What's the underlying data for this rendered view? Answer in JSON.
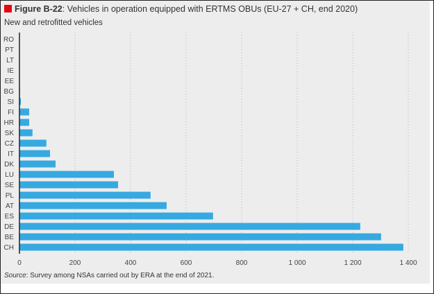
{
  "figure": {
    "label": "Figure B-22",
    "title_rest": ": Vehicles in operation equipped with ERTMS OBUs (EU-27 + CH, end 2020)",
    "subtitle": "New and retrofitted vehicles",
    "source_label": "Source",
    "source_rest": ": Survey among NSAs carried out by ERA at the end of 2021.",
    "accent_color": "#e30613",
    "bar_color": "#36a9e1"
  },
  "chart_data": {
    "type": "bar",
    "orientation": "horizontal",
    "title": "Figure B-22: Vehicles in operation equipped with ERTMS OBUs (EU-27 + CH, end 2020)",
    "subtitle": "New and retrofitted vehicles",
    "categories": [
      "RO",
      "PT",
      "LT",
      "IE",
      "EE",
      "BG",
      "SI",
      "FI",
      "HR",
      "SK",
      "CZ",
      "IT",
      "DK",
      "LU",
      "SE",
      "PL",
      "AT",
      "ES",
      "DE",
      "BE",
      "CH"
    ],
    "values": [
      0,
      0,
      0,
      0,
      0,
      2,
      5,
      35,
      35,
      47,
      97,
      110,
      130,
      340,
      355,
      472,
      530,
      697,
      1227,
      1302,
      1382
    ],
    "xlabel": "",
    "ylabel": "",
    "xlim": [
      0,
      1400
    ],
    "xticks": [
      0,
      200,
      400,
      600,
      800,
      1000,
      1200,
      1400
    ],
    "xtick_labels": [
      "0",
      "200",
      "400",
      "600",
      "800",
      "1 000",
      "1 200",
      "1 400"
    ],
    "grid": "vertical dotted",
    "legend": "none"
  }
}
